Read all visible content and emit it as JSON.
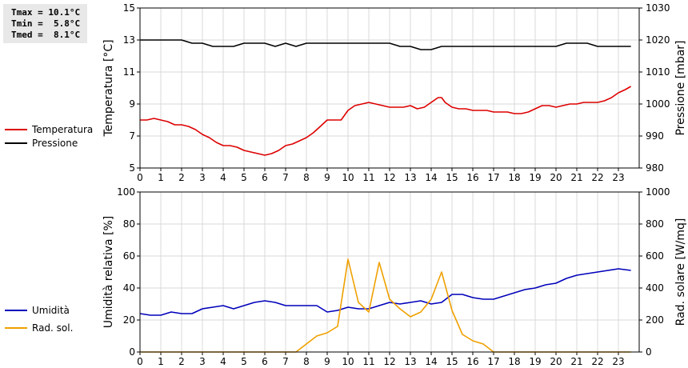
{
  "stats": {
    "tmax": "Tmax = 10.1°C",
    "tmin": "Tmin =  5.8°C",
    "tmed": "Tmed =  8.1°C"
  },
  "legend_top": [
    {
      "label": "Temperatura",
      "color": "#dd0000"
    },
    {
      "label": "Pressione",
      "color": "#000000"
    }
  ],
  "legend_bottom": [
    {
      "label": "Umidità",
      "color": "#0000bb"
    },
    {
      "label": "Rad. sol.",
      "color": "#f0a000"
    }
  ],
  "chart_data": [
    {
      "type": "line",
      "xlim": [
        0,
        24
      ],
      "x_ticks": [
        0,
        1,
        2,
        3,
        4,
        5,
        6,
        7,
        8,
        9,
        10,
        11,
        12,
        13,
        14,
        15,
        16,
        17,
        18,
        19,
        20,
        21,
        22,
        23
      ],
      "ylabel": "Temperatura [°C]",
      "ylim": [
        5,
        15
      ],
      "y_ticks": [
        5,
        7,
        9,
        11,
        13,
        15
      ],
      "y2label": "Pressione [mbar]",
      "y2lim": [
        980,
        1030
      ],
      "y2_ticks": [
        980,
        990,
        1000,
        1010,
        1020,
        1030
      ],
      "grid": true,
      "series": [
        {
          "name": "Temperatura",
          "axis": "left",
          "color": "#dd0000",
          "x": [
            0,
            0.33,
            0.67,
            1,
            1.33,
            1.67,
            2,
            2.33,
            2.67,
            3,
            3.33,
            3.67,
            4,
            4.33,
            4.67,
            5,
            5.33,
            5.67,
            6,
            6.33,
            6.67,
            7,
            7.33,
            7.67,
            8,
            8.33,
            8.67,
            9,
            9.33,
            9.67,
            10,
            10.33,
            10.67,
            11,
            11.33,
            11.67,
            12,
            12.33,
            12.67,
            13,
            13.33,
            13.67,
            14,
            14.33,
            14.5,
            14.67,
            15,
            15.33,
            15.67,
            16,
            16.33,
            16.67,
            17,
            17.33,
            17.67,
            18,
            18.33,
            18.67,
            19,
            19.33,
            19.67,
            20,
            20.33,
            20.67,
            21,
            21.33,
            21.67,
            22,
            22.33,
            22.67,
            23,
            23.33,
            23.6
          ],
          "values": [
            8.0,
            8.0,
            8.1,
            8.0,
            7.9,
            7.7,
            7.7,
            7.6,
            7.4,
            7.1,
            6.9,
            6.6,
            6.4,
            6.4,
            6.3,
            6.1,
            6.0,
            5.9,
            5.8,
            5.9,
            6.1,
            6.4,
            6.5,
            6.7,
            6.9,
            7.2,
            7.6,
            8.0,
            8.0,
            8.0,
            8.6,
            8.9,
            9.0,
            9.1,
            9.0,
            8.9,
            8.8,
            8.8,
            8.8,
            8.9,
            8.7,
            8.8,
            9.1,
            9.4,
            9.4,
            9.1,
            8.8,
            8.7,
            8.7,
            8.6,
            8.6,
            8.6,
            8.5,
            8.5,
            8.5,
            8.4,
            8.4,
            8.5,
            8.7,
            8.9,
            8.9,
            8.8,
            8.9,
            9.0,
            9.0,
            9.1,
            9.1,
            9.1,
            9.2,
            9.4,
            9.7,
            9.9,
            10.1
          ]
        },
        {
          "name": "Pressione",
          "axis": "right",
          "color": "#000000",
          "x": [
            0,
            0.5,
            1,
            1.5,
            2,
            2.5,
            3,
            3.5,
            4,
            4.5,
            5,
            5.5,
            6,
            6.5,
            7,
            7.5,
            8,
            8.5,
            9,
            9.5,
            10,
            10.5,
            11,
            11.5,
            12,
            12.5,
            13,
            13.5,
            14,
            14.5,
            15,
            15.5,
            16,
            16.5,
            17,
            17.5,
            18,
            18.5,
            19,
            19.5,
            20,
            20.5,
            21,
            21.5,
            22,
            22.5,
            23,
            23.6
          ],
          "values": [
            1020,
            1020,
            1020,
            1020,
            1020,
            1019,
            1019,
            1018,
            1018,
            1018,
            1019,
            1019,
            1019,
            1018,
            1019,
            1018,
            1019,
            1019,
            1019,
            1019,
            1019,
            1019,
            1019,
            1019,
            1019,
            1018,
            1018,
            1017,
            1017,
            1018,
            1018,
            1018,
            1018,
            1018,
            1018,
            1018,
            1018,
            1018,
            1018,
            1018,
            1018,
            1019,
            1019,
            1019,
            1018,
            1018,
            1018,
            1018
          ]
        }
      ]
    },
    {
      "type": "line",
      "xlim": [
        0,
        24
      ],
      "x_ticks": [
        0,
        1,
        2,
        3,
        4,
        5,
        6,
        7,
        8,
        9,
        10,
        11,
        12,
        13,
        14,
        15,
        16,
        17,
        18,
        19,
        20,
        21,
        22,
        23
      ],
      "ylabel": "Umidità relativa [%]",
      "ylim": [
        0,
        100
      ],
      "y_ticks": [
        0,
        20,
        40,
        60,
        80,
        100
      ],
      "y2label": "Rad. solare [W/mq]",
      "y2lim": [
        0,
        1000
      ],
      "y2_ticks": [
        0,
        200,
        400,
        600,
        800,
        1000
      ],
      "grid": true,
      "series": [
        {
          "name": "Umidità",
          "axis": "left",
          "color": "#0000bb",
          "x": [
            0,
            0.5,
            1,
            1.5,
            2,
            2.5,
            3,
            3.5,
            4,
            4.5,
            5,
            5.5,
            6,
            6.5,
            7,
            7.5,
            8,
            8.5,
            9,
            9.5,
            10,
            10.5,
            11,
            11.5,
            12,
            12.5,
            13,
            13.5,
            14,
            14.5,
            15,
            15.5,
            16,
            16.5,
            17,
            17.5,
            18,
            18.5,
            19,
            19.5,
            20,
            20.5,
            21,
            21.5,
            22,
            22.5,
            23,
            23.6
          ],
          "values": [
            24,
            23,
            23,
            25,
            24,
            24,
            27,
            28,
            29,
            27,
            29,
            31,
            32,
            31,
            29,
            29,
            29,
            29,
            25,
            26,
            28,
            27,
            27,
            29,
            31,
            30,
            31,
            32,
            30,
            31,
            36,
            36,
            34,
            33,
            33,
            35,
            37,
            39,
            40,
            42,
            43,
            46,
            48,
            49,
            50,
            51,
            52,
            51
          ]
        },
        {
          "name": "Rad. sol.",
          "axis": "right",
          "color": "#f0a000",
          "x": [
            0,
            7.5,
            8,
            8.5,
            9,
            9.5,
            10,
            10.5,
            11,
            11.5,
            12,
            12.5,
            13,
            13.5,
            14,
            14.5,
            15,
            15.5,
            16,
            16.5,
            17,
            17.5,
            18,
            20,
            23.6
          ],
          "values": [
            0,
            0,
            50,
            100,
            120,
            160,
            580,
            310,
            250,
            560,
            330,
            270,
            220,
            250,
            330,
            500,
            260,
            110,
            70,
            50,
            0,
            0,
            0,
            0,
            0
          ]
        }
      ]
    }
  ]
}
